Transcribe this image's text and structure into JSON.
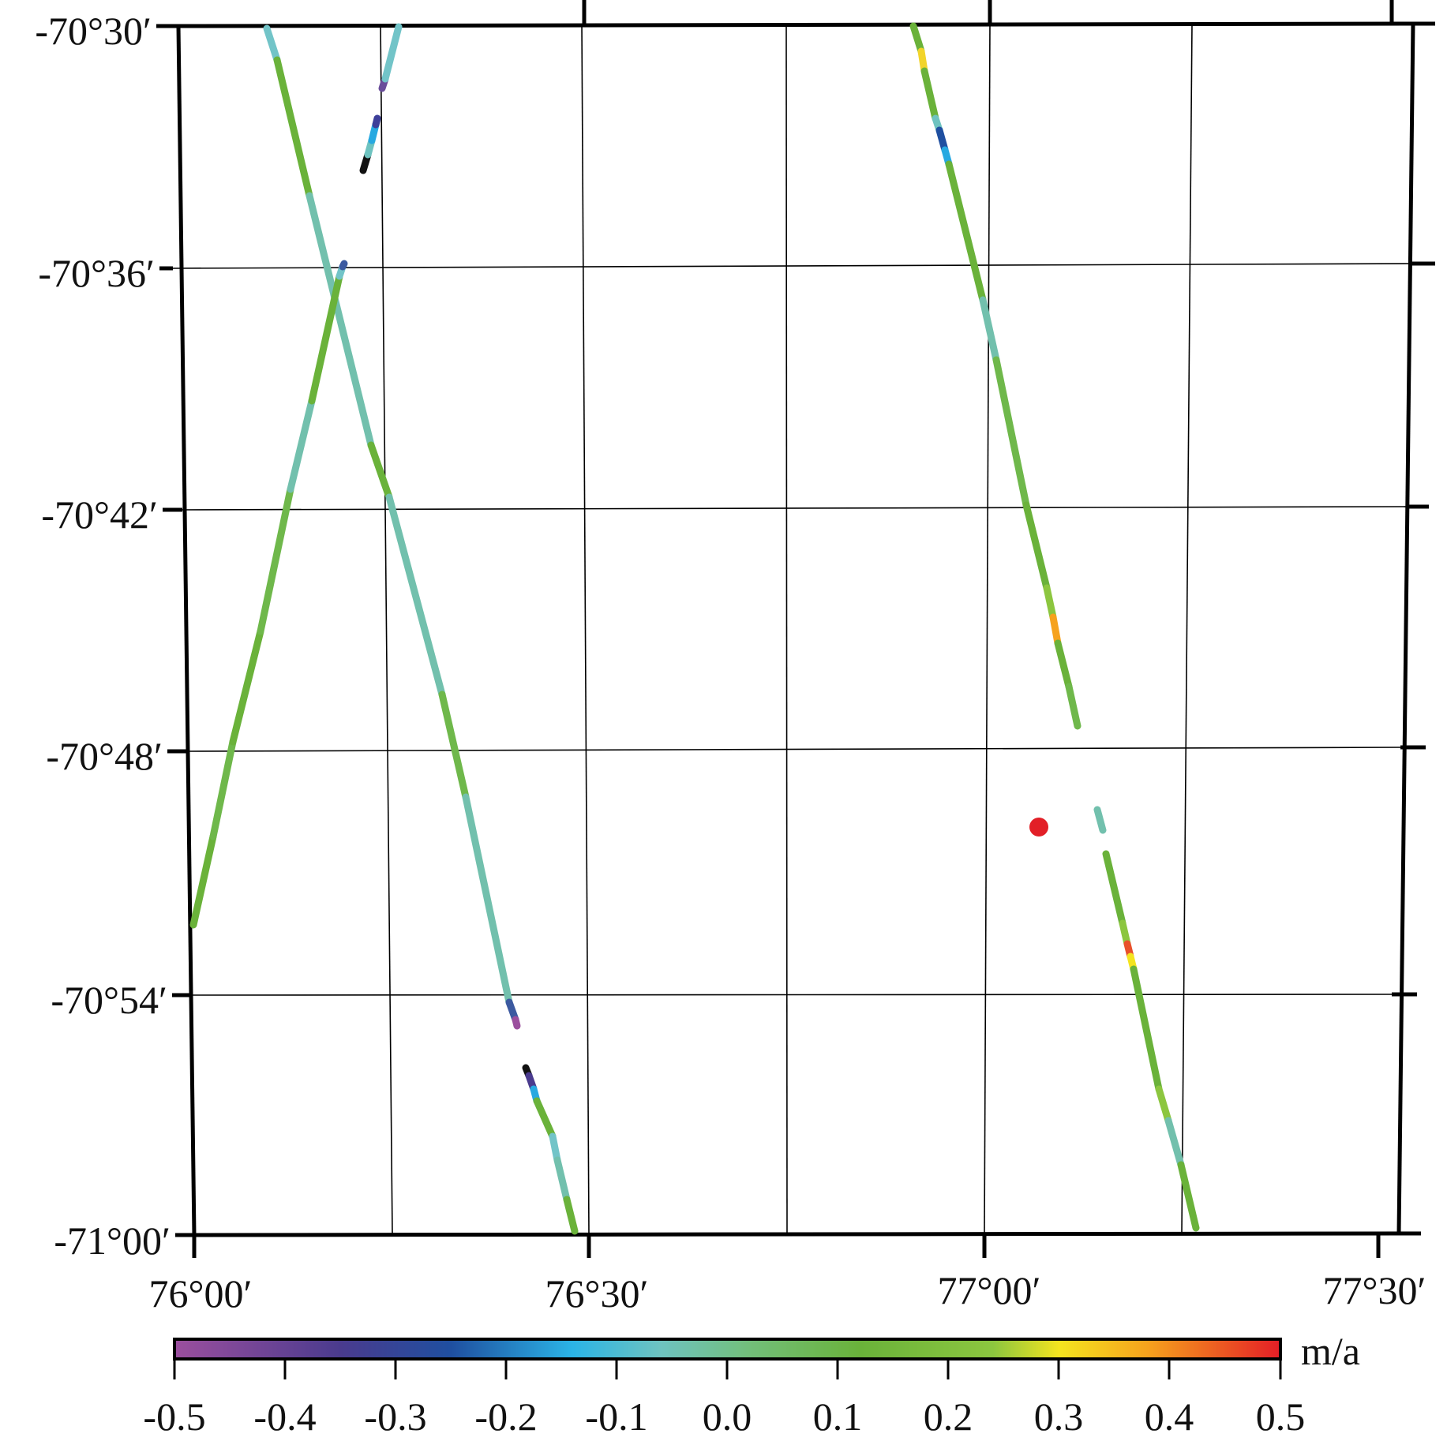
{
  "map": {
    "lat_labels": [
      "-70°30′",
      "-70°36′",
      "-70°42′",
      "-70°48′",
      "-70°54′",
      "-71°00′"
    ],
    "lon_labels": [
      "76°00′",
      "76°30′",
      "77°00′",
      "77°30′"
    ]
  },
  "colorbar": {
    "unit": "m/a",
    "ticks": [
      "-0.5",
      "-0.4",
      "-0.3",
      "-0.2",
      "-0.1",
      "0.0",
      "0.1",
      "0.2",
      "0.3",
      "0.4",
      "0.5"
    ],
    "colors": [
      "#8e4a9a",
      "#3d3f9a",
      "#27a9e1",
      "#6cc1a8",
      "#6fb92c",
      "#f2e42a",
      "#f28b22",
      "#e21f27"
    ]
  }
}
